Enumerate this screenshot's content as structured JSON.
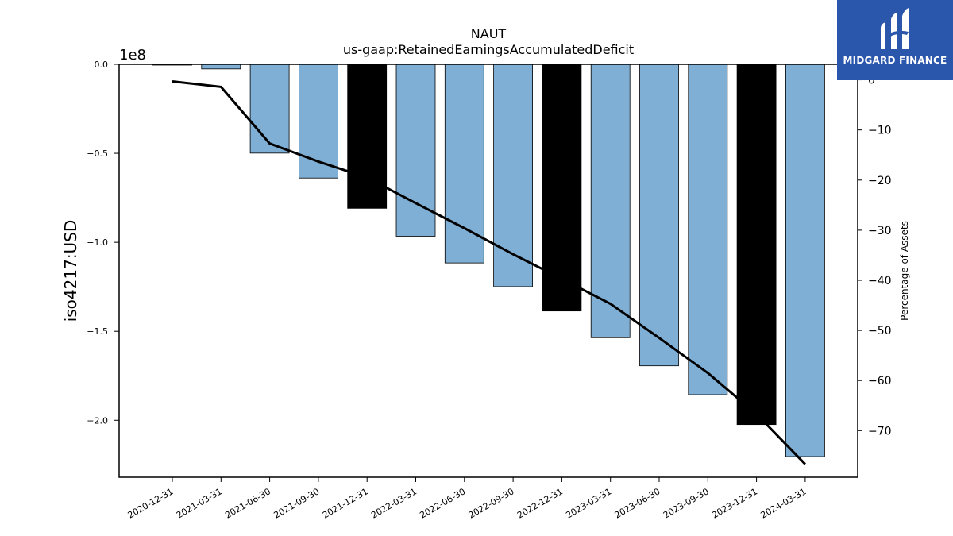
{
  "chart_data": {
    "type": "bar",
    "title": "NAUT",
    "subtitle": "us-gaap:RetainedEarningsAccumulatedDeficit",
    "ylabel": "iso4217:USD",
    "y2label": "Percentage of Assets",
    "y_offset_label": "1e8",
    "categories": [
      "2020-12-31",
      "2021-03-31",
      "2021-06-30",
      "2021-09-30",
      "2021-12-31",
      "2022-03-31",
      "2022-06-30",
      "2022-09-30",
      "2022-12-31",
      "2023-03-31",
      "2023-06-30",
      "2023-09-30",
      "2023-12-31",
      "2024-03-31"
    ],
    "values": [
      -300000.0,
      -2600000.0,
      -49900000.0,
      -63900000.0,
      -80900000.0,
      -96600000.0,
      -111600000.0,
      -124900000.0,
      -138600000.0,
      -153600000.0,
      -169400000.0,
      -185600000.0,
      -202400000.0,
      -220400000.0
    ],
    "bar_colors": [
      "#7fafd4",
      "#7fafd4",
      "#7fafd4",
      "#7fafd4",
      "#000000",
      "#7fafd4",
      "#7fafd4",
      "#7fafd4",
      "#000000",
      "#7fafd4",
      "#7fafd4",
      "#7fafd4",
      "#000000",
      "#7fafd4"
    ],
    "ylim": [
      -232000000.0,
      0
    ],
    "yticks": [
      0,
      -50000000.0,
      -100000000.0,
      -150000000.0,
      -200000000.0
    ],
    "ytick_labels": [
      "0.0",
      "−0.5",
      "−1.0",
      "−1.5",
      "−2.0"
    ],
    "line_values": [
      -0.3,
      -1.4,
      -12.7,
      -16.3,
      -19.5,
      -24.6,
      -29.6,
      -34.8,
      -39.7,
      -44.7,
      -51.5,
      -58.5,
      -66.7,
      -76.7
    ],
    "y2lim": [
      -79.3,
      3.1
    ],
    "y2ticks": [
      0,
      -10,
      -20,
      -30,
      -40,
      -50,
      -60,
      -70
    ],
    "y2tick_labels": [
      "0",
      "−10",
      "−20",
      "−30",
      "−40",
      "−50",
      "−60",
      "−70"
    ],
    "line_color": "#000000"
  },
  "logo": {
    "text": "MIDGARD FINANCE"
  }
}
